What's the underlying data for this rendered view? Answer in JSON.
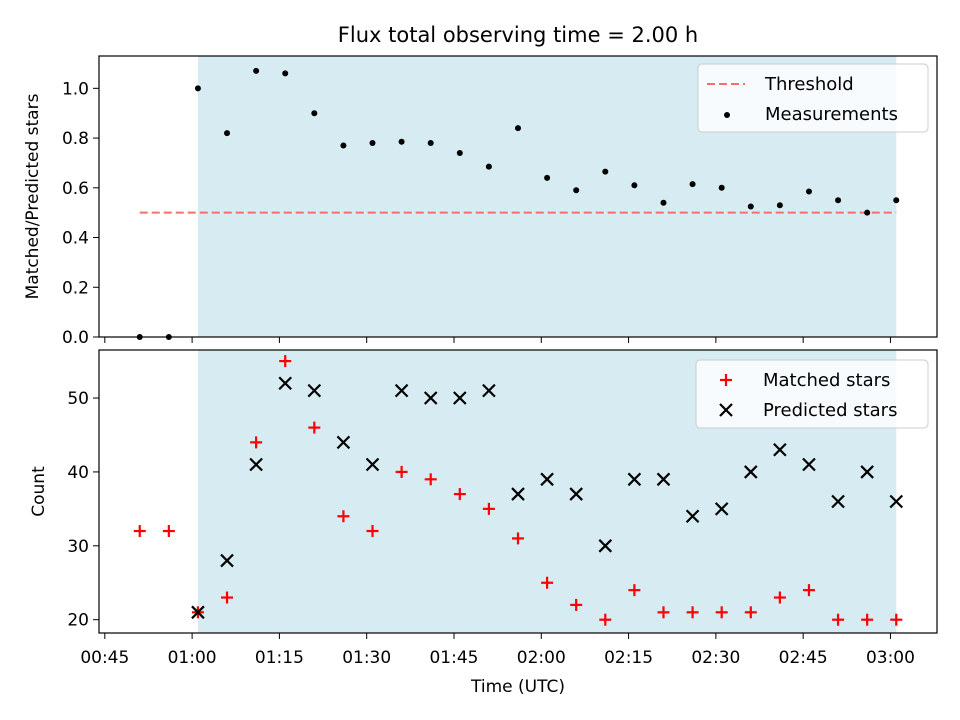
{
  "title": "Flux total observing time = 2.00 h",
  "colors": {
    "shade": "#add8e6",
    "threshold": "#ff6b6b",
    "measurement": "#000000",
    "matched": "#ff0000",
    "predicted": "#000000"
  },
  "chart_data": [
    {
      "type": "scatter",
      "panel": "top",
      "title": "Flux total observing time = 2.00 h",
      "ylabel": "Matched/Predicted stars",
      "xlabel": "",
      "ylim": [
        0,
        1.13
      ],
      "yticks": [
        "0.0",
        "0.2",
        "0.4",
        "0.6",
        "0.8",
        "1.0"
      ],
      "ytick_values": [
        0.0,
        0.2,
        0.4,
        0.6,
        0.8,
        1.0
      ],
      "legend_position": "top-right",
      "shaded_span": {
        "start": "01:01",
        "end": "03:01"
      },
      "threshold": {
        "name": "Threshold",
        "value": 0.5,
        "x_start": "00:51",
        "x_end": "03:01"
      },
      "series": [
        {
          "name": "Measurements",
          "x": [
            "00:51",
            "00:56",
            "01:01",
            "01:06",
            "01:11",
            "01:16",
            "01:21",
            "01:26",
            "01:31",
            "01:36",
            "01:41",
            "01:46",
            "01:51",
            "01:56",
            "02:01",
            "02:06",
            "02:11",
            "02:16",
            "02:21",
            "02:26",
            "02:31",
            "02:36",
            "02:41",
            "02:46",
            "02:51",
            "02:56",
            "03:01"
          ],
          "values": [
            0.0,
            0.0,
            1.0,
            0.82,
            1.07,
            1.06,
            0.9,
            0.77,
            0.78,
            0.785,
            0.78,
            0.74,
            0.685,
            0.84,
            0.64,
            0.59,
            0.665,
            0.61,
            0.54,
            0.615,
            0.6,
            0.525,
            0.53,
            0.585,
            0.55,
            0.5,
            0.55
          ]
        }
      ]
    },
    {
      "type": "scatter",
      "panel": "bottom",
      "xlabel": "Time (UTC)",
      "ylabel": "Count",
      "ylim": [
        18.2,
        56.5
      ],
      "yticks": [
        "20",
        "30",
        "40",
        "50"
      ],
      "ytick_values": [
        20,
        30,
        40,
        50
      ],
      "xticks": [
        "00:45",
        "01:00",
        "01:15",
        "01:30",
        "01:45",
        "02:00",
        "02:15",
        "02:30",
        "02:45",
        "03:00"
      ],
      "xrange": [
        "00:44",
        "03:08"
      ],
      "legend_position": "top-right",
      "shaded_span": {
        "start": "01:01",
        "end": "03:01"
      },
      "series": [
        {
          "name": "Matched stars",
          "marker": "+",
          "x": [
            "00:51",
            "00:56",
            "01:01",
            "01:06",
            "01:11",
            "01:16",
            "01:21",
            "01:26",
            "01:31",
            "01:36",
            "01:41",
            "01:46",
            "01:51",
            "01:56",
            "02:01",
            "02:06",
            "02:11",
            "02:16",
            "02:21",
            "02:26",
            "02:31",
            "02:36",
            "02:41",
            "02:46",
            "02:51",
            "02:56",
            "03:01"
          ],
          "values": [
            32,
            32,
            21,
            23,
            44,
            55,
            46,
            34,
            32,
            40,
            39,
            37,
            35,
            31,
            25,
            22,
            20,
            24,
            21,
            21,
            21,
            21,
            23,
            24,
            20,
            20,
            20
          ]
        },
        {
          "name": "Predicted stars",
          "marker": "x",
          "x": [
            "01:01",
            "01:06",
            "01:11",
            "01:16",
            "01:21",
            "01:26",
            "01:31",
            "01:36",
            "01:41",
            "01:46",
            "01:51",
            "01:56",
            "02:01",
            "02:06",
            "02:11",
            "02:16",
            "02:21",
            "02:26",
            "02:31",
            "02:36",
            "02:41",
            "02:46",
            "02:51",
            "02:56",
            "03:01"
          ],
          "values": [
            21,
            28,
            41,
            52,
            51,
            44,
            41,
            51,
            50,
            50,
            51,
            37,
            39,
            37,
            30,
            39,
            39,
            34,
            35,
            40,
            43,
            41,
            36,
            40,
            36
          ]
        }
      ]
    }
  ]
}
